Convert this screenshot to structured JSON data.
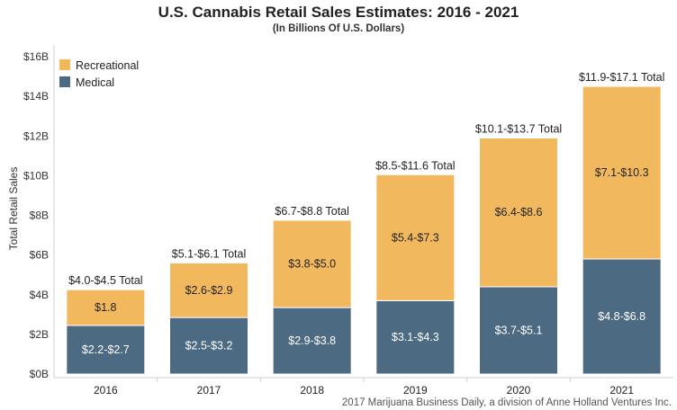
{
  "chart_data": {
    "type": "bar",
    "stacked": true,
    "title": "U.S. Cannabis Retail Sales Estimates: 2016 - 2021",
    "subtitle": "(In Billions Of U.S. Dollars)",
    "ylabel": "Total Retail Sales",
    "xlabel": "",
    "ylim": [
      0,
      16
    ],
    "yticks": [
      0,
      2,
      4,
      6,
      8,
      10,
      12,
      14,
      16
    ],
    "ytick_labels": [
      "$0B",
      "$2B",
      "$4B",
      "$6B",
      "$8B",
      "$10B",
      "$12B",
      "$14B",
      "$16B"
    ],
    "categories": [
      "2016",
      "2017",
      "2018",
      "2019",
      "2020",
      "2021"
    ],
    "series": [
      {
        "name": "Medical",
        "color": "#4c6a82",
        "values": [
          2.45,
          2.85,
          3.35,
          3.7,
          4.4,
          5.8
        ],
        "labels": [
          "$2.2-$2.7",
          "$2.5-$3.2",
          "$2.9-$3.8",
          "$3.1-$4.3",
          "$3.7-$5.1",
          "$4.8-$6.8"
        ]
      },
      {
        "name": "Recreational",
        "color": "#f2b85e",
        "values": [
          1.8,
          2.75,
          4.4,
          6.35,
          7.5,
          8.7
        ],
        "labels": [
          "$1.8",
          "$2.6-$2.9",
          "$3.8-$5.0",
          "$5.4-$7.3",
          "$6.4-$8.6",
          "$7.1-$10.3"
        ]
      }
    ],
    "total_labels": [
      "$4.0-$4.5 Total",
      "$5.1-$6.1 Total",
      "$6.7-$8.8 Total",
      "$8.5-$11.6 Total",
      "$10.1-$13.7 Total",
      "$11.9-$17.1 Total"
    ],
    "legend": {
      "position": "top-left",
      "entries": [
        "Recreational",
        "Medical"
      ]
    },
    "grid": false
  },
  "source": "2017 Marijuana Business Daily, a division of Anne Holland Ventures Inc."
}
